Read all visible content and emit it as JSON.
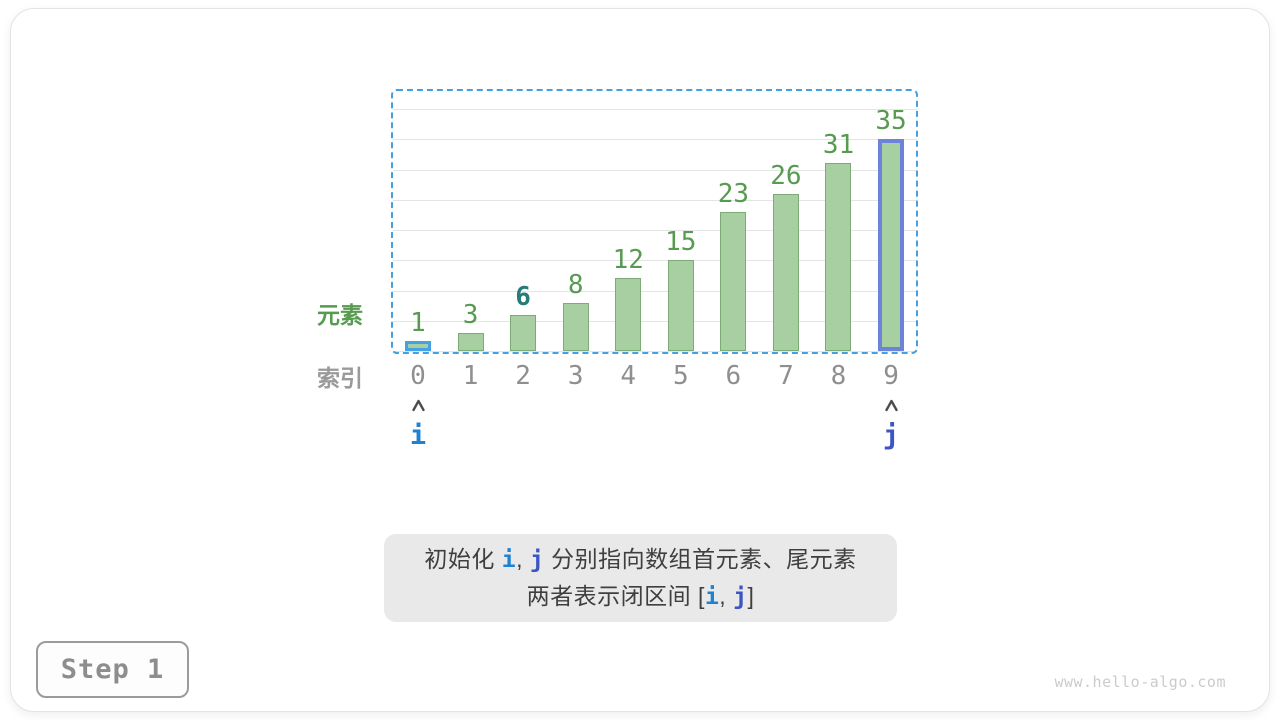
{
  "page": {
    "watermark": "www.hello-algo.com"
  },
  "step_button": {
    "label": "Step 1"
  },
  "chart_data": {
    "type": "bar",
    "categories": [
      "0",
      "1",
      "2",
      "3",
      "4",
      "5",
      "6",
      "7",
      "8",
      "9"
    ],
    "values": [
      1,
      3,
      6,
      8,
      12,
      15,
      23,
      26,
      31,
      35
    ],
    "title": "",
    "xlabel": "索引",
    "ylabel": "元素",
    "ylim": [
      0,
      40
    ],
    "gridline_step": 5,
    "grid": true,
    "legend": "none",
    "target_value": 6,
    "highlighted_bars": {
      "i": 0,
      "j": 9
    }
  },
  "pointers": [
    {
      "name": "i",
      "index": 0
    },
    {
      "name": "j",
      "index": 9
    }
  ],
  "caption": {
    "line1_parts": [
      {
        "text": "初始化 ",
        "kind": "plain"
      },
      {
        "text": "i",
        "kind": "i"
      },
      {
        "text": ", ",
        "kind": "plain"
      },
      {
        "text": "j",
        "kind": "j"
      },
      {
        "text": " 分别指向数组首元素、尾元素",
        "kind": "plain"
      }
    ],
    "line2_parts": [
      {
        "text": "两者表示闭区间 [",
        "kind": "plain"
      },
      {
        "text": "i",
        "kind": "i"
      },
      {
        "text": ", ",
        "kind": "plain"
      },
      {
        "text": "j",
        "kind": "j"
      },
      {
        "text": "]",
        "kind": "plain"
      }
    ]
  },
  "colors": {
    "bar_fill": "#a7cfa2",
    "bar_border": "#7cab76",
    "value_text_green": "#569b4f",
    "target_text_teal": "#267c79",
    "index_text_gray": "#8f8f8f",
    "pointer_i_blue": "#1e82d2",
    "pointer_j_indigo": "#3b55c5",
    "i_bar_border_blue": "#45a1e4",
    "j_bar_border_indigo": "#6d83da",
    "interval_dashed_blue": "#42a0e3",
    "caption_background": "#e9e9e9",
    "gridline_gray": "#e4e4e4"
  }
}
